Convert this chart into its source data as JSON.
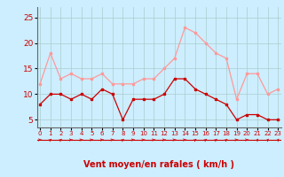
{
  "x": [
    0,
    1,
    2,
    3,
    4,
    5,
    6,
    7,
    8,
    9,
    10,
    11,
    12,
    13,
    14,
    15,
    16,
    17,
    18,
    19,
    20,
    21,
    22,
    23
  ],
  "wind_mean": [
    8,
    10,
    10,
    9,
    10,
    9,
    11,
    10,
    5,
    9,
    9,
    9,
    10,
    13,
    13,
    11,
    10,
    9,
    8,
    5,
    6,
    6,
    5,
    5
  ],
  "wind_gust": [
    12,
    18,
    13,
    14,
    13,
    13,
    14,
    12,
    12,
    12,
    13,
    13,
    15,
    17,
    23,
    22,
    20,
    18,
    17,
    9,
    14,
    14,
    10,
    11
  ],
  "mean_color": "#cc0000",
  "gust_color": "#ff9999",
  "bg_color": "#cceeff",
  "grid_color": "#aacccc",
  "xlabel": "Vent moyen/en rafales ( km/h )",
  "yticks": [
    5,
    10,
    15,
    20,
    25
  ],
  "ylim": [
    3.5,
    27
  ],
  "xlim": [
    -0.3,
    23.3
  ],
  "xlabel_color": "#cc0000",
  "tick_color": "#cc0000",
  "spine_color": "#666666",
  "arrow_angles": [
    0,
    30,
    30,
    0,
    0,
    0,
    0,
    0,
    30,
    0,
    0,
    0,
    0,
    0,
    0,
    30,
    30,
    30,
    30,
    0,
    0,
    45,
    45,
    45
  ]
}
